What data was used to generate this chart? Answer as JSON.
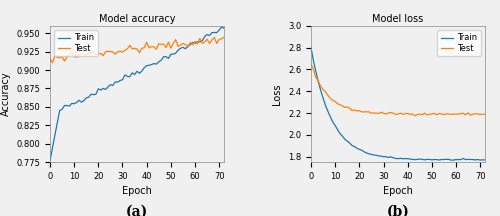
{
  "accuracy": {
    "title": "Model accuracy",
    "xlabel": "Epoch",
    "ylabel": "Accuracy",
    "ylim": [
      0.775,
      0.96
    ],
    "xlim": [
      0,
      72
    ],
    "yticks": [
      0.775,
      0.8,
      0.825,
      0.85,
      0.875,
      0.9,
      0.925,
      0.95
    ],
    "xticks": [
      0,
      10,
      20,
      30,
      40,
      50,
      60,
      70
    ],
    "train_color": "#1f77b4",
    "test_color": "#ff7f0e",
    "label_a": "(a)"
  },
  "loss": {
    "title": "Model loss",
    "xlabel": "Epoch",
    "ylabel": "Loss",
    "ylim": [
      1.75,
      3.0
    ],
    "xlim": [
      0,
      72
    ],
    "yticks": [
      1.8,
      2.0,
      2.2,
      2.4,
      2.6,
      2.8,
      3.0
    ],
    "xticks": [
      0,
      10,
      20,
      30,
      40,
      50,
      60,
      70
    ],
    "train_color": "#1f77b4",
    "test_color": "#ff7f0e",
    "label_b": "(b)"
  },
  "fig": {
    "facecolor": "#f0f0f0",
    "axes_facecolor": "#f0f0f0"
  }
}
